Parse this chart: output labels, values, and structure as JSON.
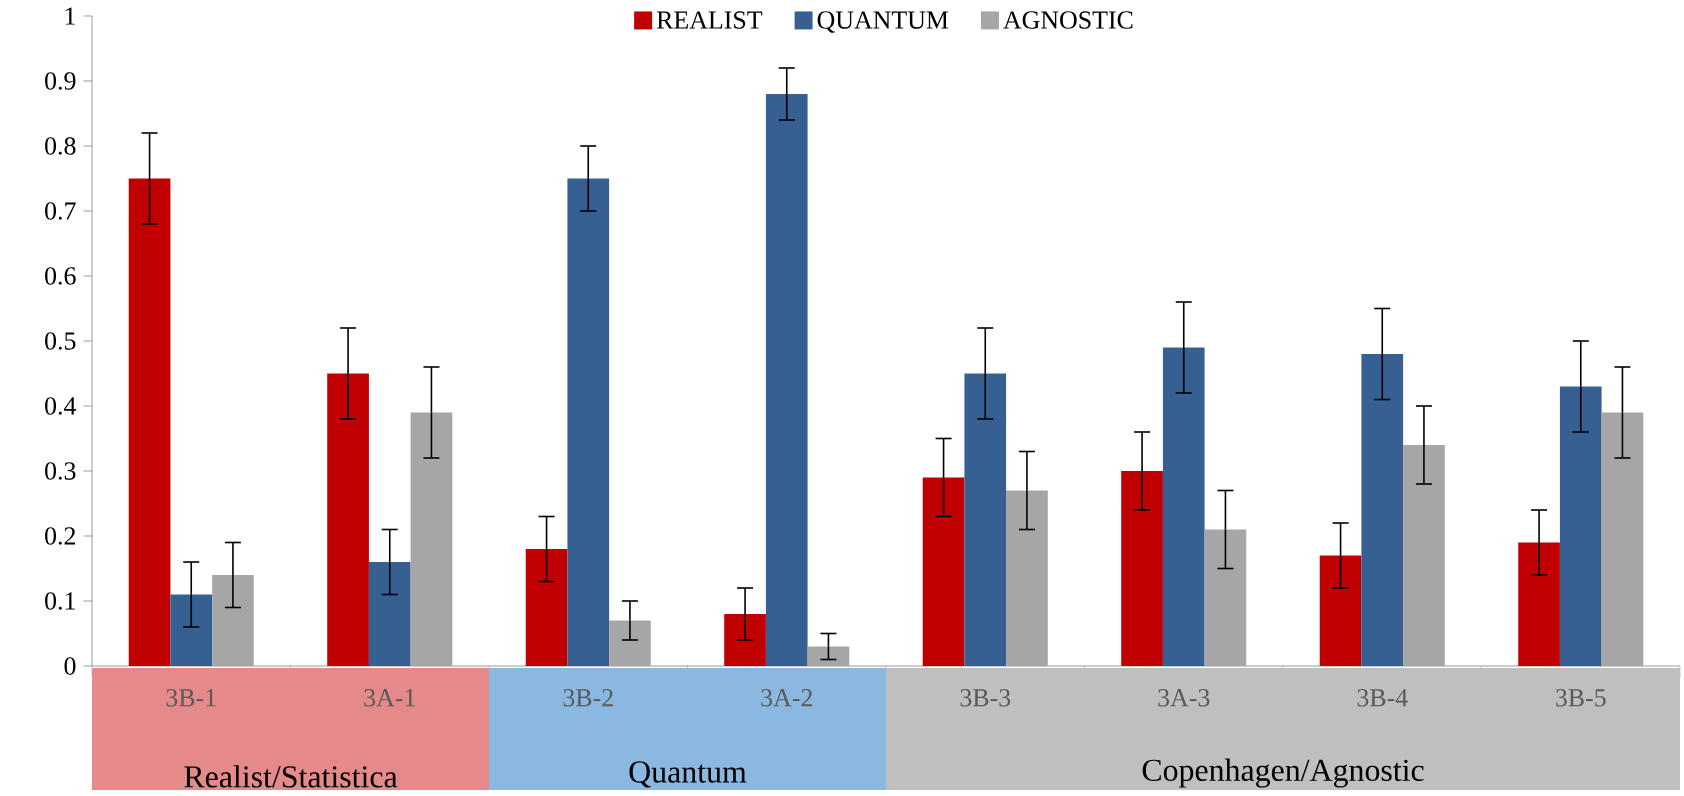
{
  "chart_data": {
    "type": "bar",
    "categories": [
      "3B-1",
      "3A-1",
      "3B-2",
      "3A-2",
      "3B-3",
      "3A-3",
      "3B-4",
      "3B-5"
    ],
    "series": [
      {
        "name": "REALIST",
        "color": "#c00000",
        "values": [
          0.75,
          0.45,
          0.18,
          0.08,
          0.29,
          0.3,
          0.17,
          0.19
        ],
        "errors": [
          0.07,
          0.07,
          0.05,
          0.04,
          0.06,
          0.06,
          0.05,
          0.05
        ]
      },
      {
        "name": "QUANTUM",
        "color": "#376092",
        "values": [
          0.11,
          0.16,
          0.75,
          0.88,
          0.45,
          0.49,
          0.48,
          0.43
        ],
        "errors": [
          0.05,
          0.05,
          0.05,
          0.04,
          0.07,
          0.07,
          0.07,
          0.07
        ]
      },
      {
        "name": "AGNOSTIC",
        "color": "#a6a6a6",
        "values": [
          0.14,
          0.39,
          0.07,
          0.03,
          0.27,
          0.21,
          0.34,
          0.39
        ],
        "errors": [
          0.05,
          0.07,
          0.03,
          0.02,
          0.06,
          0.06,
          0.06,
          0.07
        ]
      }
    ],
    "ylim": [
      0,
      1
    ],
    "yticks": [
      0,
      0.1,
      0.2,
      0.3,
      0.4,
      0.5,
      0.6,
      0.7,
      0.8,
      0.9,
      1
    ],
    "annotations": [
      "Realist/Statistica",
      "Quantum",
      "Copenhagen/Agnostic"
    ],
    "legend": "top",
    "grid": false
  }
}
